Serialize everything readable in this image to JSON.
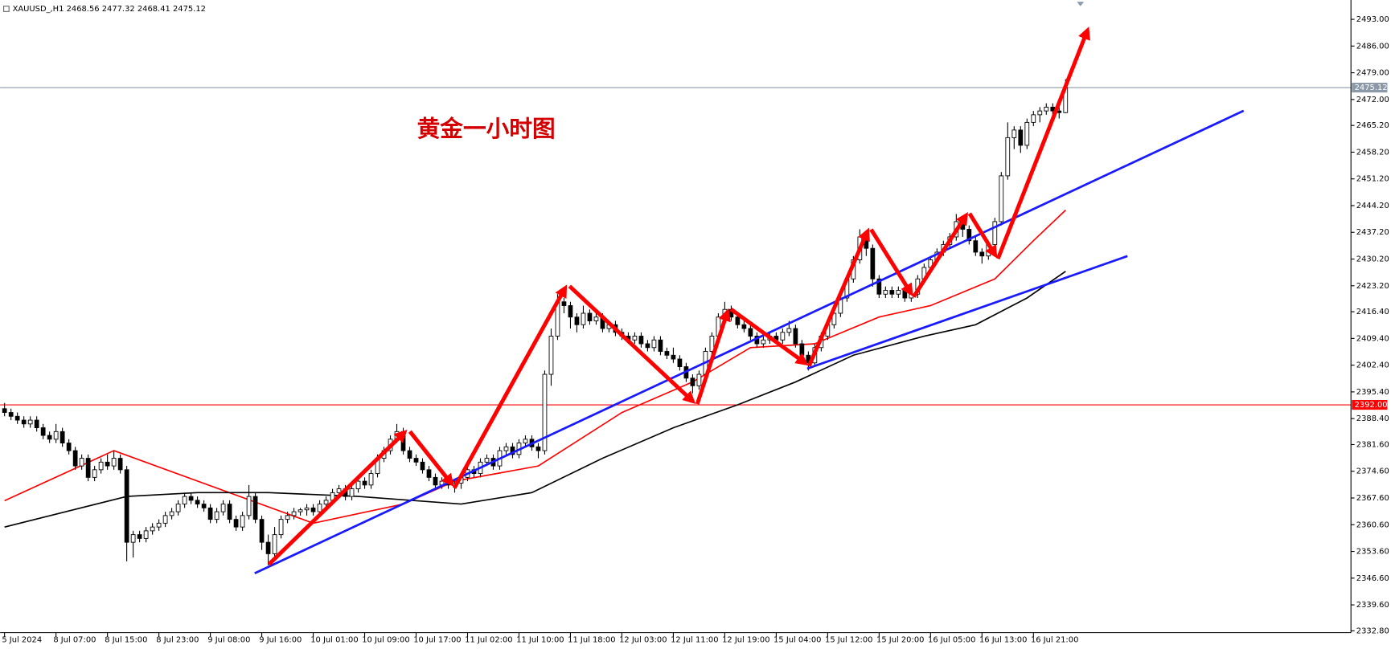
{
  "chart_data": {
    "type": "candlestick",
    "symbol": "XAUUSD_,H1",
    "annotation": "黄金一小时图",
    "ylim": [
      2332.33,
      2497.6
    ],
    "yticks": [
      {
        "value": 2332.8,
        "label": "2332.80"
      },
      {
        "value": 2339.6,
        "label": "2339.60"
      },
      {
        "value": 2346.6,
        "label": "2346.60"
      },
      {
        "value": 2353.6,
        "label": "2353.60"
      },
      {
        "value": 2360.6,
        "label": "2360.60"
      },
      {
        "value": 2367.6,
        "label": "2367.60"
      },
      {
        "value": 2374.6,
        "label": "2374.60"
      },
      {
        "value": 2381.6,
        "label": "2381.60"
      },
      {
        "value": 2388.4,
        "label": "2388.40"
      },
      {
        "value": 2395.4,
        "label": "2395.40"
      },
      {
        "value": 2402.4,
        "label": "2402.40"
      },
      {
        "value": 2409.4,
        "label": "2409.40"
      },
      {
        "value": 2416.4,
        "label": "2416.40"
      },
      {
        "value": 2423.2,
        "label": "2423.20"
      },
      {
        "value": 2430.2,
        "label": "2430.20"
      },
      {
        "value": 2437.2,
        "label": "2437.20"
      },
      {
        "value": 2444.2,
        "label": "2444.20"
      },
      {
        "value": 2451.2,
        "label": "2451.20"
      },
      {
        "value": 2458.2,
        "label": "2458.20"
      },
      {
        "value": 2465.2,
        "label": "2465.20"
      },
      {
        "value": 2472,
        "label": "2472.00"
      },
      {
        "value": 2479,
        "label": "2479.00"
      },
      {
        "value": 2486,
        "label": "2486.00"
      },
      {
        "value": 2493,
        "label": "2493.00"
      }
    ],
    "xticks": [
      {
        "value": 0,
        "label": "5 Jul 2024"
      },
      {
        "value": 8,
        "label": "8 Jul 07:00"
      },
      {
        "value": 16,
        "label": "8 Jul 15:00"
      },
      {
        "value": 24,
        "label": "8 Jul 23:00"
      },
      {
        "value": 32,
        "label": "9 Jul 08:00"
      },
      {
        "value": 40,
        "label": "9 Jul 16:00"
      },
      {
        "value": 48,
        "label": "10 Jul 01:00"
      },
      {
        "value": 56,
        "label": "10 Jul 09:00"
      },
      {
        "value": 64,
        "label": "10 Jul 17:00"
      },
      {
        "value": 72,
        "label": "11 Jul 02:00"
      },
      {
        "value": 80,
        "label": "11 Jul 10:00"
      },
      {
        "value": 88,
        "label": "11 Jul 18:00"
      },
      {
        "value": 96,
        "label": "12 Jul 03:00"
      },
      {
        "value": 104,
        "label": "12 Jul 11:00"
      },
      {
        "value": 112,
        "label": "12 Jul 19:00"
      },
      {
        "value": 120,
        "label": "15 Jul 04:00"
      },
      {
        "value": 128,
        "label": "15 Jul 12:00"
      },
      {
        "value": 136,
        "label": "15 Jul 20:00"
      },
      {
        "value": 144,
        "label": "16 Jul 05:00"
      },
      {
        "value": 152,
        "label": "16 Jul 13:00"
      },
      {
        "value": 160,
        "label": "16 Jul 21:00"
      }
    ],
    "hlines": [
      {
        "value": 2392,
        "label": "2392.00",
        "color": "#ff0000"
      },
      {
        "value": 2475.12,
        "label": "2475.12",
        "color": "#8a98a8"
      }
    ],
    "lines": [
      {
        "color": "#ff0000",
        "x": [
          0,
          17,
          48,
          62,
          70,
          83,
          96,
          107,
          116,
          126,
          136,
          144,
          154,
          160,
          165
        ],
        "values": [
          2366.9,
          2380,
          2361,
          2366,
          2372,
          2376,
          2390,
          2398,
          2407,
          2408,
          2415,
          2418,
          2425,
          2435,
          2443
        ]
      },
      {
        "color": "#000000",
        "x": [
          0,
          19,
          30,
          41,
          55,
          71,
          82,
          93,
          104,
          114,
          123,
          132,
          143,
          151,
          159,
          165
        ],
        "values": [
          2360,
          2368,
          2369,
          2369,
          2368,
          2366,
          2369,
          2378,
          2386,
          2392,
          2398,
          2405,
          2410,
          2413,
          2420,
          2427
        ]
      }
    ],
    "ohlc": [
      [
        2391,
        2392.5,
        2389,
        2390
      ],
      [
        2390,
        2391,
        2388,
        2389
      ],
      [
        2389,
        2390,
        2387,
        2388
      ],
      [
        2388,
        2389,
        2386,
        2387
      ],
      [
        2387,
        2389,
        2386,
        2388
      ],
      [
        2388,
        2389,
        2385,
        2386
      ],
      [
        2386,
        2387,
        2383,
        2384
      ],
      [
        2384,
        2385,
        2382,
        2383
      ],
      [
        2383,
        2387,
        2382,
        2385
      ],
      [
        2385,
        2386,
        2381,
        2382
      ],
      [
        2382,
        2383,
        2379,
        2380
      ],
      [
        2380,
        2381,
        2375,
        2376
      ],
      [
        2376,
        2379,
        2375,
        2378
      ],
      [
        2378,
        2379,
        2372,
        2373
      ],
      [
        2373,
        2376,
        2372,
        2375
      ],
      [
        2375,
        2378,
        2374,
        2377
      ],
      [
        2377,
        2379,
        2375,
        2376
      ],
      [
        2376,
        2380,
        2375,
        2378
      ],
      [
        2378,
        2379,
        2374,
        2375
      ],
      [
        2375,
        2376,
        2351,
        2356
      ],
      [
        2356,
        2359,
        2352,
        2358
      ],
      [
        2358,
        2359,
        2356,
        2357
      ],
      [
        2357,
        2360,
        2356,
        2359
      ],
      [
        2359,
        2361,
        2358,
        2360
      ],
      [
        2360,
        2362,
        2359,
        2361
      ],
      [
        2361,
        2364,
        2360,
        2363
      ],
      [
        2363,
        2365,
        2362,
        2364
      ],
      [
        2364,
        2367,
        2363,
        2366
      ],
      [
        2366,
        2369,
        2365,
        2368
      ],
      [
        2368,
        2369,
        2366,
        2367
      ],
      [
        2367,
        2368,
        2365,
        2366
      ],
      [
        2366,
        2367,
        2364,
        2365
      ],
      [
        2365,
        2366,
        2361,
        2362
      ],
      [
        2362,
        2365,
        2361,
        2364
      ],
      [
        2364,
        2367,
        2363,
        2366
      ],
      [
        2366,
        2367,
        2361,
        2362
      ],
      [
        2362,
        2363,
        2359,
        2360
      ],
      [
        2360,
        2364,
        2359,
        2363
      ],
      [
        2363,
        2371,
        2362,
        2368
      ],
      [
        2368,
        2369,
        2361,
        2362
      ],
      [
        2362,
        2363,
        2354,
        2356
      ],
      [
        2356,
        2358,
        2350,
        2353
      ],
      [
        2353,
        2360,
        2352,
        2358
      ],
      [
        2358,
        2363,
        2357,
        2362
      ],
      [
        2362,
        2364,
        2361,
        2363
      ],
      [
        2363,
        2365,
        2362,
        2364
      ],
      [
        2364,
        2365,
        2363,
        2364.5
      ],
      [
        2364.5,
        2366,
        2363,
        2365
      ],
      [
        2365,
        2366,
        2363,
        2364
      ],
      [
        2364,
        2367,
        2363,
        2366
      ],
      [
        2366,
        2368,
        2365,
        2367
      ],
      [
        2367,
        2370,
        2366,
        2369
      ],
      [
        2369,
        2371,
        2368,
        2370
      ],
      [
        2370,
        2371,
        2367,
        2368
      ],
      [
        2368,
        2371,
        2367,
        2370
      ],
      [
        2370,
        2373,
        2369,
        2372
      ],
      [
        2372,
        2373,
        2370,
        2371
      ],
      [
        2371,
        2375,
        2370,
        2374
      ],
      [
        2374,
        2379,
        2373,
        2378
      ],
      [
        2378,
        2381,
        2377,
        2380
      ],
      [
        2380,
        2384,
        2379,
        2383
      ],
      [
        2383,
        2387,
        2382,
        2385
      ],
      [
        2385,
        2386,
        2379,
        2380
      ],
      [
        2380,
        2381,
        2377,
        2378
      ],
      [
        2378,
        2379,
        2376,
        2377
      ],
      [
        2377,
        2378,
        2374,
        2375
      ],
      [
        2375,
        2376,
        2372,
        2373
      ],
      [
        2373,
        2374,
        2370,
        2371
      ],
      [
        2371,
        2373,
        2370,
        2372
      ],
      [
        2372,
        2373,
        2370,
        2371
      ],
      [
        2371,
        2372,
        2369,
        2371.5
      ],
      [
        2371.5,
        2374,
        2370,
        2373
      ],
      [
        2373,
        2376,
        2372,
        2375
      ],
      [
        2375,
        2376,
        2373,
        2374
      ],
      [
        2374,
        2378,
        2373,
        2377
      ],
      [
        2377,
        2379,
        2376,
        2378
      ],
      [
        2378,
        2379,
        2375,
        2376
      ],
      [
        2376,
        2381,
        2375,
        2380
      ],
      [
        2380,
        2382,
        2379,
        2381
      ],
      [
        2381,
        2382,
        2378,
        2379
      ],
      [
        2379,
        2383,
        2378,
        2382
      ],
      [
        2382,
        2384,
        2381,
        2383
      ],
      [
        2383,
        2384,
        2380,
        2381
      ],
      [
        2381,
        2382,
        2378,
        2380
      ],
      [
        2380,
        2401,
        2379,
        2400
      ],
      [
        2400,
        2412,
        2397,
        2410
      ],
      [
        2410,
        2421,
        2409,
        2419
      ],
      [
        2419,
        2420,
        2416,
        2418
      ],
      [
        2418,
        2419,
        2412,
        2415
      ],
      [
        2415,
        2416,
        2411,
        2413
      ],
      [
        2413,
        2418,
        2412,
        2416
      ],
      [
        2416,
        2417,
        2413,
        2414
      ],
      [
        2414,
        2416,
        2413,
        2415
      ],
      [
        2415,
        2416,
        2411,
        2412
      ],
      [
        2412,
        2414,
        2411,
        2413
      ],
      [
        2413,
        2414,
        2410,
        2411
      ],
      [
        2411,
        2412,
        2409,
        2410
      ],
      [
        2410,
        2411,
        2408,
        2409
      ],
      [
        2409,
        2411,
        2408,
        2410
      ],
      [
        2410,
        2411,
        2407,
        2408
      ],
      [
        2408,
        2409,
        2406,
        2407
      ],
      [
        2407,
        2410,
        2406,
        2409
      ],
      [
        2409,
        2410,
        2405,
        2406
      ],
      [
        2406,
        2407,
        2404,
        2405
      ],
      [
        2405,
        2407,
        2403,
        2404
      ],
      [
        2404,
        2405,
        2401,
        2402
      ],
      [
        2402,
        2403,
        2398,
        2399
      ],
      [
        2399,
        2400,
        2395,
        2397
      ],
      [
        2397,
        2401,
        2396,
        2400
      ],
      [
        2400,
        2407,
        2399,
        2406
      ],
      [
        2406,
        2411,
        2405,
        2410
      ],
      [
        2410,
        2416,
        2409,
        2415
      ],
      [
        2415,
        2419,
        2414,
        2417
      ],
      [
        2417,
        2418,
        2414,
        2415
      ],
      [
        2415,
        2416,
        2412,
        2413
      ],
      [
        2413,
        2414,
        2411,
        2412
      ],
      [
        2412,
        2413,
        2409,
        2410
      ],
      [
        2410,
        2411,
        2407,
        2408
      ],
      [
        2408,
        2410,
        2407,
        2409
      ],
      [
        2409,
        2411,
        2408,
        2410
      ],
      [
        2410,
        2411,
        2408,
        2409
      ],
      [
        2409,
        2412,
        2408,
        2411
      ],
      [
        2411,
        2414,
        2410,
        2412
      ],
      [
        2412,
        2413,
        2407,
        2408
      ],
      [
        2408,
        2409,
        2404,
        2405
      ],
      [
        2405,
        2406,
        2401,
        2403
      ],
      [
        2403,
        2408,
        2402,
        2407
      ],
      [
        2407,
        2411,
        2406,
        2410
      ],
      [
        2410,
        2414,
        2409,
        2413
      ],
      [
        2413,
        2417,
        2412,
        2416
      ],
      [
        2416,
        2421,
        2415,
        2420
      ],
      [
        2420,
        2426,
        2419,
        2425
      ],
      [
        2425,
        2431,
        2424,
        2430
      ],
      [
        2430,
        2438,
        2429,
        2436
      ],
      [
        2436,
        2437,
        2431,
        2433
      ],
      [
        2433,
        2434,
        2423,
        2425
      ],
      [
        2425,
        2426,
        2420,
        2421
      ],
      [
        2421,
        2423,
        2420,
        2422
      ],
      [
        2422,
        2423,
        2420,
        2421
      ],
      [
        2421,
        2423,
        2420,
        2422
      ],
      [
        2422,
        2423,
        2419,
        2420
      ],
      [
        2420,
        2422,
        2419,
        2421
      ],
      [
        2421,
        2426,
        2420,
        2425
      ],
      [
        2425,
        2429,
        2424,
        2428
      ],
      [
        2428,
        2431,
        2427,
        2430
      ],
      [
        2430,
        2433,
        2429,
        2432
      ],
      [
        2432,
        2435,
        2431,
        2434
      ],
      [
        2434,
        2437,
        2433,
        2436
      ],
      [
        2436,
        2442,
        2435,
        2440
      ],
      [
        2440,
        2441,
        2436,
        2438
      ],
      [
        2438,
        2439,
        2434,
        2435
      ],
      [
        2435,
        2436,
        2431,
        2432
      ],
      [
        2432,
        2433,
        2429,
        2431
      ],
      [
        2431,
        2435,
        2430,
        2434
      ],
      [
        2434,
        2441,
        2433,
        2440
      ],
      [
        2440,
        2453,
        2439,
        2452
      ],
      [
        2452,
        2466,
        2451,
        2462
      ],
      [
        2462,
        2465,
        2459,
        2464
      ],
      [
        2464,
        2465,
        2458,
        2460
      ],
      [
        2460,
        2467,
        2459,
        2466
      ],
      [
        2466,
        2469,
        2465,
        2468
      ],
      [
        2468,
        2470,
        2466,
        2469
      ],
      [
        2469,
        2471,
        2468,
        2470
      ],
      [
        2470,
        2471,
        2468,
        2469
      ],
      [
        2469,
        2470,
        2467,
        2468.56
      ],
      [
        2468.56,
        2477.32,
        2468.41,
        2475.12
      ]
    ]
  }
}
